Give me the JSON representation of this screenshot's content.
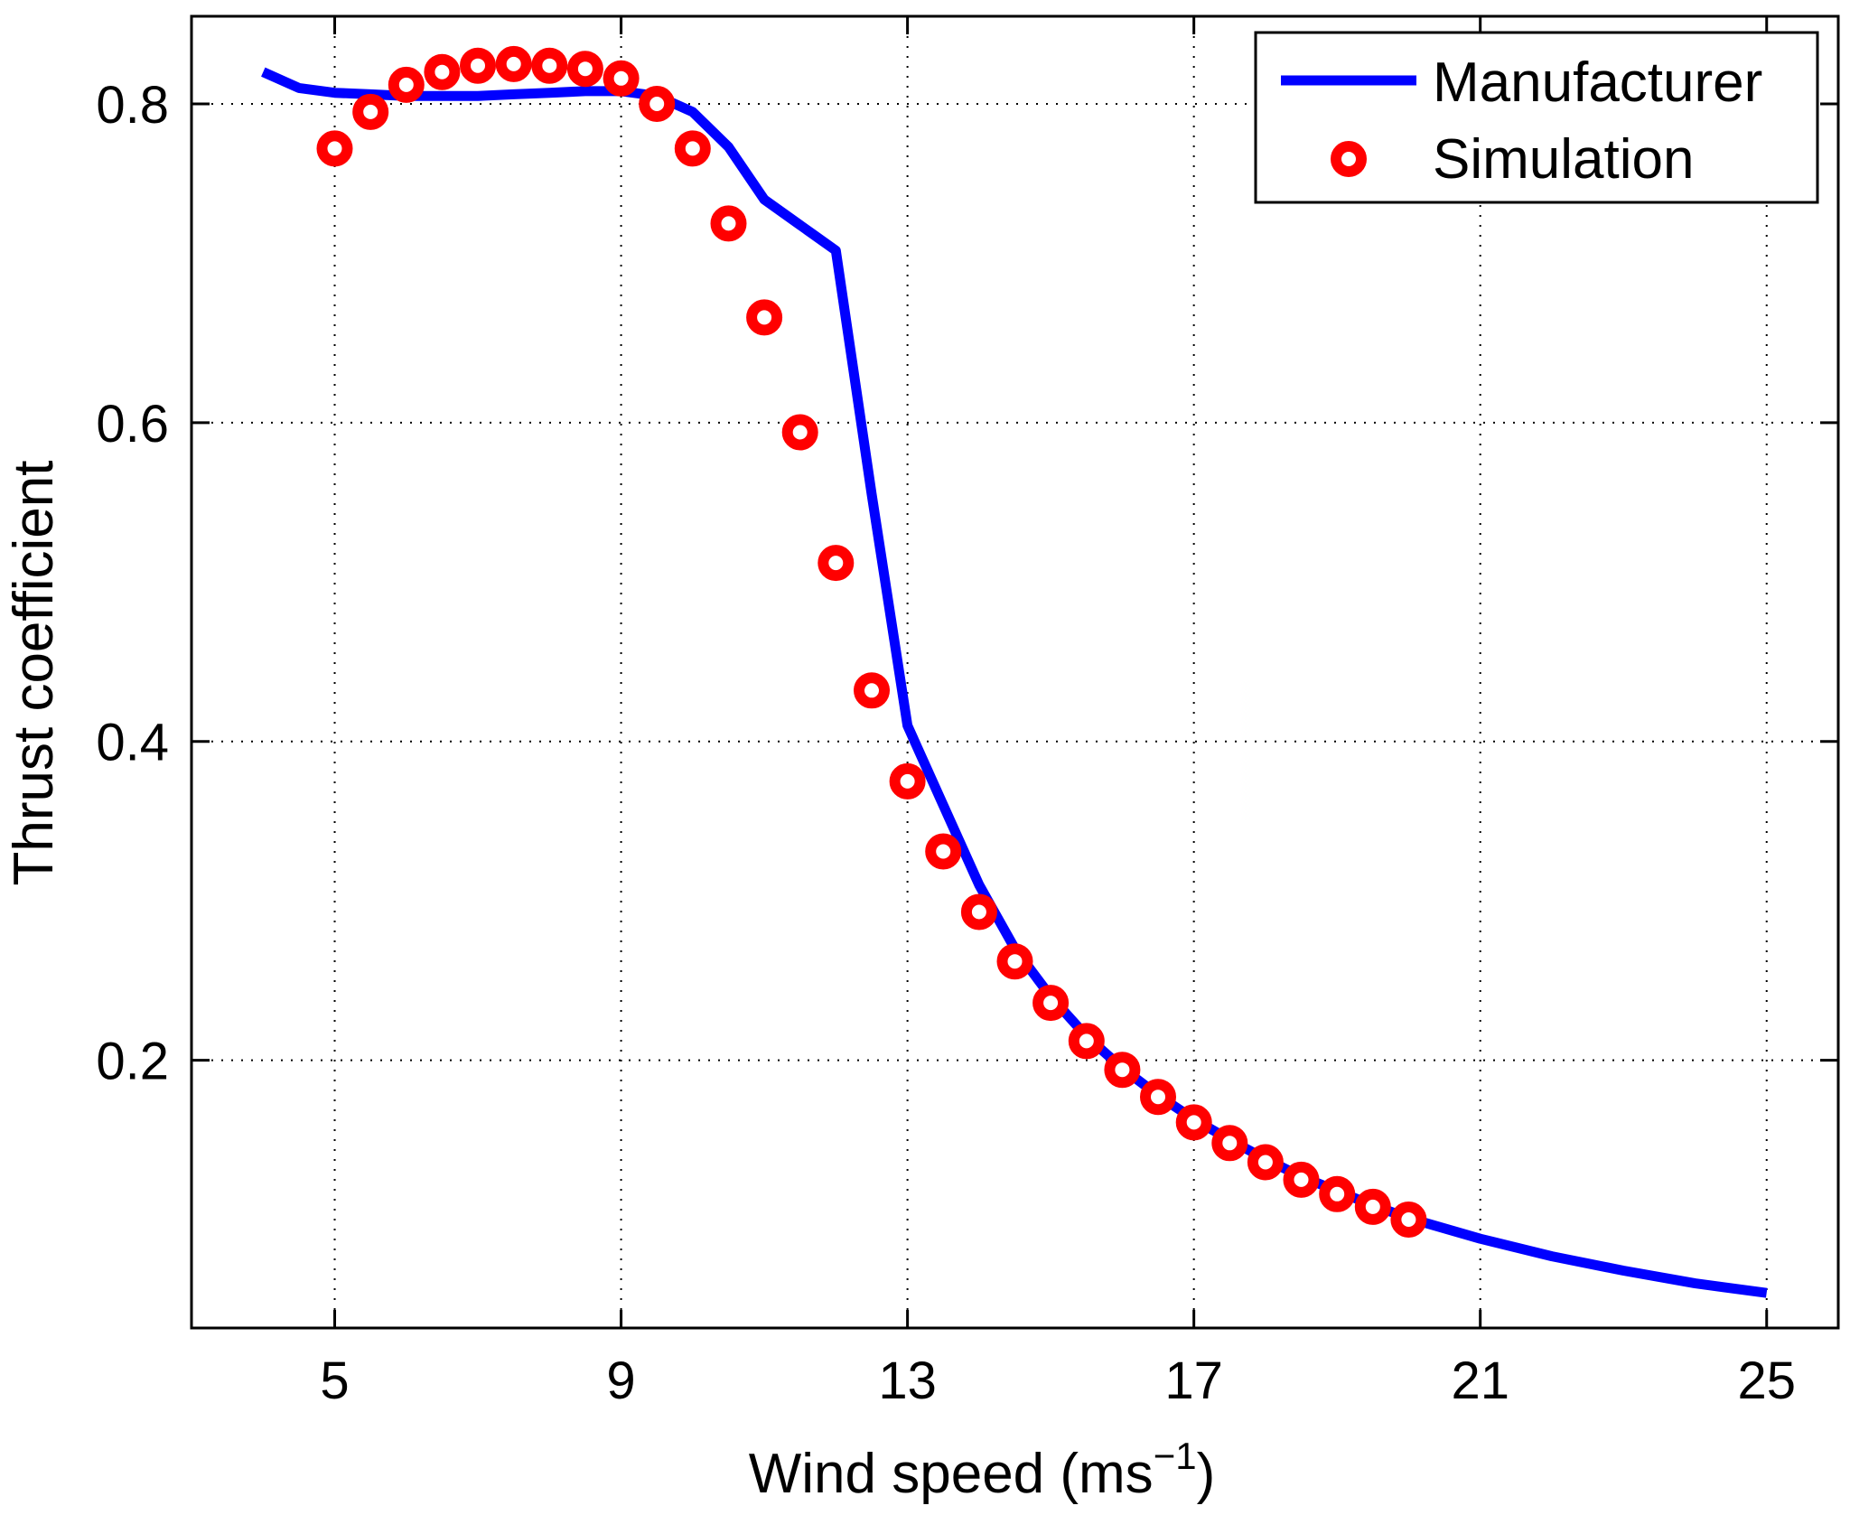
{
  "chart_data": {
    "type": "line",
    "title": "",
    "xlabel": "Wind speed (ms",
    "xlabel_exponent": "−1",
    "xlabel_close": ")",
    "ylabel": "Thrust coefficient",
    "xlim": [
      3,
      26
    ],
    "ylim": [
      0.032,
      0.855
    ],
    "xticks": [
      5,
      9,
      13,
      17,
      21,
      25
    ],
    "xtick_labels": [
      "5",
      "9",
      "13",
      "17",
      "21",
      "25"
    ],
    "yticks": [
      0.2,
      0.4,
      0.6,
      0.8
    ],
    "ytick_labels": [
      "0.2",
      "0.4",
      "0.6",
      "0.8"
    ],
    "grid": true,
    "legend_position": "top-right",
    "series": [
      {
        "name": "Manufacturer",
        "style": "line",
        "color": "#0000ff",
        "x": [
          4,
          4.5,
          5,
          5.5,
          6,
          6.5,
          7,
          7.5,
          8,
          8.5,
          9,
          9.5,
          10,
          10.5,
          11,
          11.5,
          12,
          12.5,
          13,
          13.5,
          14,
          14.5,
          15,
          15.5,
          16,
          16.5,
          17,
          17.5,
          18,
          18.5,
          19,
          19.5,
          20,
          21,
          22,
          23,
          24,
          25
        ],
        "y": [
          0.82,
          0.81,
          0.807,
          0.806,
          0.805,
          0.805,
          0.805,
          0.806,
          0.807,
          0.808,
          0.808,
          0.805,
          0.795,
          0.773,
          0.74,
          0.724,
          0.708,
          0.555,
          0.41,
          0.36,
          0.31,
          0.27,
          0.24,
          0.215,
          0.195,
          0.178,
          0.163,
          0.15,
          0.138,
          0.127,
          0.118,
          0.109,
          0.101,
          0.088,
          0.077,
          0.068,
          0.06,
          0.054
        ]
      },
      {
        "name": "Simulation",
        "style": "markers",
        "color": "#ff0000",
        "x": [
          5,
          5.5,
          6,
          6.5,
          7,
          7.5,
          8,
          8.5,
          9,
          9.5,
          10,
          10.5,
          11,
          11.5,
          12,
          12.5,
          13,
          13.5,
          14,
          14.5,
          15,
          15.5,
          16,
          16.5,
          17,
          17.5,
          18,
          18.5,
          19,
          19.5,
          20
        ],
        "y": [
          0.772,
          0.795,
          0.812,
          0.82,
          0.824,
          0.825,
          0.824,
          0.822,
          0.816,
          0.8,
          0.772,
          0.725,
          0.666,
          0.594,
          0.512,
          0.432,
          0.375,
          0.331,
          0.293,
          0.262,
          0.236,
          0.212,
          0.194,
          0.177,
          0.161,
          0.148,
          0.136,
          0.125,
          0.116,
          0.108,
          0.1
        ]
      }
    ]
  }
}
